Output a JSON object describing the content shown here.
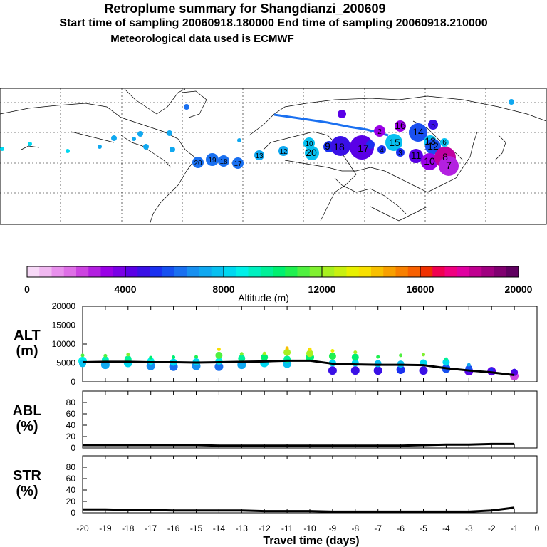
{
  "header": {
    "title": "Retroplume summary for Shangdianzi_200609",
    "sampling": "Start time of sampling 20060918.180000     End time of sampling 20060918.210000",
    "met": "Meteorological data used is ECMWF"
  },
  "colorbar": {
    "tick_labels": [
      "0",
      "4000",
      "8000",
      "12000",
      "16000",
      "20000"
    ],
    "label": "Altitude (m)",
    "colors": [
      "#f7d9f7",
      "#f0b8f0",
      "#e890ec",
      "#de6fe6",
      "#cc44e0",
      "#b320e0",
      "#9a00e6",
      "#7a00e6",
      "#5a00e6",
      "#3a10e6",
      "#1a30f0",
      "#1650f0",
      "#1a70f0",
      "#1890f0",
      "#10a8f0",
      "#08c0f0",
      "#00d8f0",
      "#00f0e8",
      "#00f0c0",
      "#00f098",
      "#00f070",
      "#20f050",
      "#50f040",
      "#80f030",
      "#a8f020",
      "#c8f010",
      "#e8f000",
      "#f8e000",
      "#f8c000",
      "#f8a000",
      "#f88000",
      "#f86000",
      "#f03000",
      "#f00050",
      "#f00080",
      "#e000a0",
      "#c00090",
      "#a00080",
      "#800070",
      "#600060"
    ]
  },
  "map": {
    "trajectory_labels": [
      "20",
      "19",
      "18",
      "17",
      "13",
      "12",
      "10",
      "20",
      "9",
      "18",
      "17",
      "16",
      "15",
      "14",
      "13",
      "12",
      "11",
      "10",
      "8",
      "7",
      "6",
      "5",
      "4",
      "3",
      "2"
    ]
  },
  "chart_data": [
    {
      "type": "line",
      "panel": "ALT",
      "ylabel": "ALT\n(m)",
      "ylabel_lines": [
        "ALT",
        "(m)"
      ],
      "ylim": [
        0,
        20000
      ],
      "yticks": [
        0,
        5000,
        10000,
        15000,
        20000
      ],
      "x": [
        -20,
        -19,
        -18,
        -17,
        -16,
        -15,
        -14,
        -13,
        -12,
        -11,
        -10,
        -9,
        -8,
        -7,
        -6,
        -5,
        -4,
        -3,
        -2,
        -1
      ],
      "series": [
        {
          "name": "mean altitude",
          "values": [
            5200,
            5300,
            5300,
            5200,
            5200,
            5100,
            5200,
            5300,
            5400,
            5600,
            5600,
            4800,
            4600,
            4500,
            4500,
            4400,
            3600,
            3000,
            2500,
            1800
          ]
        }
      ],
      "scatter": [
        {
          "x": -20,
          "values": [
            5500,
            4800,
            7000
          ]
        },
        {
          "x": -19,
          "values": [
            4500,
            5800,
            6900
          ]
        },
        {
          "x": -18,
          "values": [
            5000,
            6000,
            7200
          ]
        },
        {
          "x": -17,
          "values": [
            4200,
            5500,
            6400
          ]
        },
        {
          "x": -16,
          "values": [
            4000,
            5200,
            6500
          ]
        },
        {
          "x": -15,
          "values": [
            4200,
            5300,
            6600
          ]
        },
        {
          "x": -14,
          "values": [
            4000,
            5500,
            7000,
            8600
          ]
        },
        {
          "x": -13,
          "values": [
            4500,
            6200,
            7400
          ]
        },
        {
          "x": -12,
          "values": [
            5000,
            6500,
            7500
          ]
        },
        {
          "x": -11,
          "values": [
            4800,
            6000,
            7800,
            8900
          ]
        },
        {
          "x": -10,
          "values": [
            6500,
            7500,
            8600
          ]
        },
        {
          "x": -9,
          "values": [
            3000,
            5000,
            6800,
            8200
          ]
        },
        {
          "x": -8,
          "values": [
            3000,
            5000,
            6500,
            7800
          ]
        },
        {
          "x": -7,
          "values": [
            3000,
            4800,
            6600
          ]
        },
        {
          "x": -6,
          "values": [
            3200,
            4700,
            7000
          ]
        },
        {
          "x": -5,
          "values": [
            3000,
            5000,
            7200
          ]
        },
        {
          "x": -4,
          "values": [
            3500,
            5200,
            6000
          ]
        },
        {
          "x": -3,
          "values": [
            2800,
            3500,
            4500
          ]
        },
        {
          "x": -2,
          "values": [
            2800,
            3200
          ]
        },
        {
          "x": -1,
          "values": [
            1500,
            2500,
            3000
          ]
        }
      ]
    },
    {
      "type": "line",
      "panel": "ABL",
      "ylabel": "ABL\n(%)",
      "ylabel_lines": [
        "ABL",
        "(%)"
      ],
      "ylim": [
        0,
        100
      ],
      "yticks": [
        0,
        20,
        40,
        60,
        80
      ],
      "x": [
        -20,
        -19,
        -18,
        -17,
        -16,
        -15,
        -14,
        -13,
        -12,
        -11,
        -10,
        -9,
        -8,
        -7,
        -6,
        -5,
        -4,
        -3,
        -2,
        -1
      ],
      "series": [
        {
          "name": "ABL fraction",
          "values": [
            5,
            5,
            5,
            5,
            5,
            5,
            4,
            4,
            4,
            4,
            4,
            4,
            4,
            4,
            4,
            5,
            6,
            6,
            7,
            7
          ]
        }
      ]
    },
    {
      "type": "line",
      "panel": "STR",
      "ylabel": "STR\n(%)",
      "ylabel_lines": [
        "STR",
        "(%)"
      ],
      "ylim": [
        0,
        100
      ],
      "yticks": [
        0,
        20,
        40,
        60,
        80
      ],
      "x": [
        -20,
        -19,
        -18,
        -17,
        -16,
        -15,
        -14,
        -13,
        -12,
        -11,
        -10,
        -9,
        -8,
        -7,
        -6,
        -5,
        -4,
        -3,
        -2,
        -1
      ],
      "series": [
        {
          "name": "stratospheric fraction",
          "values": [
            6,
            6,
            5,
            5,
            4,
            4,
            4,
            4,
            3,
            3,
            3,
            2,
            2,
            2,
            2,
            2,
            2,
            2,
            4,
            9
          ]
        }
      ],
      "xlabel": "Travel time (days)",
      "xticks": [
        "-20",
        "-19",
        "-18",
        "-17",
        "-16",
        "-15",
        "-14",
        "-13",
        "-12",
        "-11",
        "-10",
        "-9",
        "-8",
        "-7",
        "-6",
        "-5",
        "-4",
        "-3",
        "-2",
        "-1",
        "0"
      ]
    }
  ]
}
